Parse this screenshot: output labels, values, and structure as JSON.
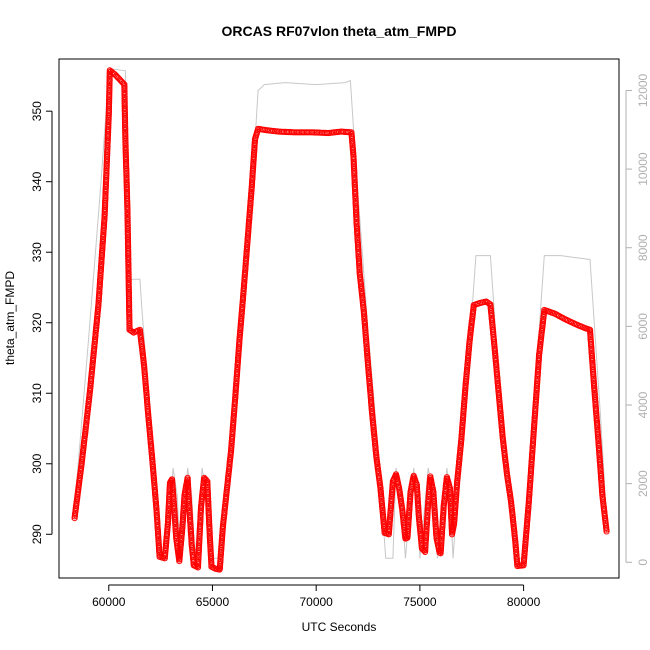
{
  "chart_data": {
    "type": "line",
    "title": "ORCAS RF07vlon theta_atm_FMPD",
    "xlabel": "UTC Seconds",
    "ylabel": "theta_atm_FMPD",
    "xlim": [
      57600,
      84600
    ],
    "ylim": [
      283.8,
      357.4
    ],
    "y2lim": [
      -400,
      12800
    ],
    "xticks": [
      60000,
      65000,
      70000,
      75000,
      80000
    ],
    "yticks": [
      290,
      300,
      310,
      320,
      330,
      340,
      350
    ],
    "y2ticks": [
      0,
      2000,
      4000,
      6000,
      8000,
      10000,
      12000
    ],
    "colors": {
      "primary": "#ff0000",
      "secondary": "#c8c8c8",
      "right_axis": "#b0b0b0"
    },
    "series": [
      {
        "marker": "circle-open",
        "axis": "left",
        "points": [
          [
            58350,
            292.3
          ],
          [
            58700,
            300.2
          ],
          [
            59100,
            310.5
          ],
          [
            59500,
            322.5
          ],
          [
            59800,
            335.2
          ],
          [
            60000,
            349.5
          ],
          [
            60050,
            355.8
          ],
          [
            60300,
            355.2
          ],
          [
            60750,
            353.8
          ],
          [
            60800,
            346.0
          ],
          [
            60900,
            336.0
          ],
          [
            61000,
            319.0
          ],
          [
            61200,
            318.6
          ],
          [
            61500,
            319.0
          ],
          [
            61700,
            314.0
          ],
          [
            61900,
            307.0
          ],
          [
            62100,
            300.5
          ],
          [
            62300,
            293.5
          ],
          [
            62450,
            286.8
          ],
          [
            62700,
            286.6
          ],
          [
            62850,
            291.5
          ],
          [
            62950,
            297.3
          ],
          [
            63050,
            297.8
          ],
          [
            63150,
            294.0
          ],
          [
            63250,
            289.5
          ],
          [
            63400,
            286.2
          ],
          [
            63550,
            291.0
          ],
          [
            63650,
            295.5
          ],
          [
            63800,
            298.0
          ],
          [
            63900,
            293.0
          ],
          [
            64000,
            288.5
          ],
          [
            64100,
            285.6
          ],
          [
            64300,
            285.3
          ],
          [
            64450,
            294.0
          ],
          [
            64600,
            298.0
          ],
          [
            64750,
            297.5
          ],
          [
            64850,
            291.0
          ],
          [
            64950,
            285.4
          ],
          [
            65150,
            285.1
          ],
          [
            65350,
            285.0
          ],
          [
            65500,
            291.0
          ],
          [
            65700,
            296.5
          ],
          [
            65900,
            302.0
          ],
          [
            66100,
            309.5
          ],
          [
            66300,
            317.5
          ],
          [
            66500,
            324.5
          ],
          [
            66700,
            332.0
          ],
          [
            66900,
            339.5
          ],
          [
            67050,
            346.0
          ],
          [
            67200,
            347.5
          ],
          [
            67600,
            347.3
          ],
          [
            68200,
            347.1
          ],
          [
            69000,
            347.0
          ],
          [
            69800,
            347.0
          ],
          [
            70600,
            346.9
          ],
          [
            71200,
            347.1
          ],
          [
            71700,
            347.0
          ],
          [
            71800,
            343.5
          ],
          [
            71950,
            334.0
          ],
          [
            72100,
            327.0
          ],
          [
            72300,
            321.5
          ],
          [
            72500,
            314.0
          ],
          [
            72700,
            307.0
          ],
          [
            72900,
            301.0
          ],
          [
            73100,
            296.5
          ],
          [
            73300,
            290.2
          ],
          [
            73500,
            290.0
          ],
          [
            73700,
            297.5
          ],
          [
            73850,
            298.5
          ],
          [
            74000,
            296.5
          ],
          [
            74150,
            293.5
          ],
          [
            74300,
            289.4
          ],
          [
            74400,
            289.5
          ],
          [
            74550,
            296.0
          ],
          [
            74700,
            298.3
          ],
          [
            74850,
            297.0
          ],
          [
            74950,
            292.5
          ],
          [
            75100,
            288.0
          ],
          [
            75250,
            287.5
          ],
          [
            75400,
            294.5
          ],
          [
            75500,
            298.2
          ],
          [
            75650,
            296.0
          ],
          [
            75800,
            289.5
          ],
          [
            75950,
            287.4
          ],
          [
            76000,
            287.3
          ],
          [
            76150,
            294.0
          ],
          [
            76300,
            298.1
          ],
          [
            76450,
            296.5
          ],
          [
            76550,
            290.0
          ],
          [
            76650,
            291.5
          ],
          [
            76800,
            297.5
          ],
          [
            77000,
            303.5
          ],
          [
            77200,
            311.0
          ],
          [
            77400,
            317.5
          ],
          [
            77600,
            322.5
          ],
          [
            77900,
            322.8
          ],
          [
            78200,
            323.0
          ],
          [
            78400,
            322.6
          ],
          [
            78600,
            316.5
          ],
          [
            78800,
            310.0
          ],
          [
            79000,
            303.5
          ],
          [
            79200,
            298.5
          ],
          [
            79400,
            294.5
          ],
          [
            79600,
            289.0
          ],
          [
            79700,
            285.5
          ],
          [
            80000,
            285.6
          ],
          [
            80250,
            294.5
          ],
          [
            80500,
            305.0
          ],
          [
            80750,
            315.5
          ],
          [
            81000,
            321.8
          ],
          [
            81500,
            321.3
          ],
          [
            82000,
            320.5
          ],
          [
            82500,
            319.8
          ],
          [
            83000,
            319.2
          ],
          [
            83200,
            319.0
          ],
          [
            83400,
            311.0
          ],
          [
            83600,
            303.5
          ],
          [
            83800,
            295.5
          ],
          [
            84000,
            290.4
          ]
        ]
      },
      {
        "axis": "right",
        "points": [
          [
            58350,
            1400
          ],
          [
            59000,
            5500
          ],
          [
            59600,
            9500
          ],
          [
            60000,
            12400
          ],
          [
            60100,
            12550
          ],
          [
            60800,
            12500
          ],
          [
            60900,
            7200
          ],
          [
            61500,
            7200
          ],
          [
            61600,
            6400
          ],
          [
            62000,
            3700
          ],
          [
            62400,
            1000
          ],
          [
            62450,
            100
          ],
          [
            62800,
            100
          ],
          [
            63000,
            1600
          ],
          [
            63100,
            2400
          ],
          [
            63300,
            1700
          ],
          [
            63450,
            100
          ],
          [
            63700,
            1700
          ],
          [
            63800,
            2400
          ],
          [
            64000,
            1700
          ],
          [
            64150,
            100
          ],
          [
            64400,
            1700
          ],
          [
            64500,
            2400
          ],
          [
            64700,
            1700
          ],
          [
            64850,
            100
          ],
          [
            65400,
            100
          ],
          [
            66000,
            3000
          ],
          [
            66600,
            7300
          ],
          [
            67000,
            10300
          ],
          [
            67200,
            12000
          ],
          [
            67500,
            12150
          ],
          [
            68500,
            12200
          ],
          [
            70000,
            12150
          ],
          [
            71400,
            12200
          ],
          [
            71650,
            12250
          ],
          [
            71900,
            10200
          ],
          [
            72500,
            5900
          ],
          [
            73000,
            2800
          ],
          [
            73350,
            100
          ],
          [
            73700,
            100
          ],
          [
            73850,
            2400
          ],
          [
            74100,
            1700
          ],
          [
            74300,
            100
          ],
          [
            74700,
            2400
          ],
          [
            74850,
            1700
          ],
          [
            75000,
            100
          ],
          [
            75400,
            2400
          ],
          [
            75650,
            1700
          ],
          [
            75850,
            100
          ],
          [
            76300,
            2400
          ],
          [
            76450,
            1700
          ],
          [
            76600,
            100
          ],
          [
            76800,
            1700
          ],
          [
            77300,
            4800
          ],
          [
            77700,
            7800
          ],
          [
            78400,
            7800
          ],
          [
            78700,
            5500
          ],
          [
            79200,
            2500
          ],
          [
            79600,
            100
          ],
          [
            80000,
            100
          ],
          [
            80500,
            4000
          ],
          [
            81000,
            7800
          ],
          [
            81800,
            7800
          ],
          [
            82500,
            7750
          ],
          [
            83200,
            7700
          ],
          [
            83700,
            3800
          ],
          [
            84000,
            1100
          ]
        ]
      }
    ]
  }
}
